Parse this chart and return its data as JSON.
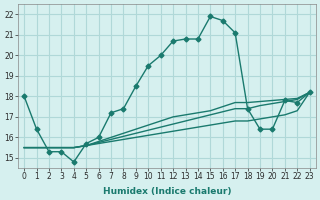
{
  "xlabel": "Humidex (Indice chaleur)",
  "ylabel": "",
  "bg_color": "#d6f0ef",
  "grid_color": "#b0d8d8",
  "line_color": "#1a7a6e",
  "xlim": [
    -0.5,
    23.5
  ],
  "ylim": [
    14.5,
    22.5
  ],
  "xticks": [
    0,
    1,
    2,
    3,
    4,
    5,
    6,
    7,
    8,
    9,
    10,
    11,
    12,
    13,
    14,
    15,
    16,
    17,
    18,
    19,
    20,
    21,
    22,
    23
  ],
  "yticks": [
    15,
    16,
    17,
    18,
    19,
    20,
    21,
    22
  ],
  "series": [
    {
      "x": [
        0,
        1,
        2,
        3,
        4,
        5,
        6,
        7,
        8,
        9,
        10,
        11,
        12,
        13,
        14,
        15,
        16,
        17,
        18,
        19,
        20,
        21,
        22,
        23
      ],
      "y": [
        18,
        16.4,
        15.3,
        15.3,
        14.8,
        15.7,
        16.0,
        17.2,
        17.4,
        18.5,
        19.5,
        20.0,
        20.7,
        20.8,
        20.8,
        21.9,
        21.7,
        21.1,
        17.4,
        16.4,
        16.4,
        17.8,
        17.7,
        18.2
      ],
      "style": "-",
      "marker": "D",
      "markersize": 2.5
    },
    {
      "x": [
        0,
        1,
        2,
        3,
        4,
        5,
        6,
        7,
        8,
        9,
        10,
        11,
        12,
        13,
        14,
        15,
        16,
        17,
        18,
        19,
        20,
        21,
        22,
        23
      ],
      "y": [
        15.5,
        15.5,
        15.5,
        15.5,
        15.5,
        15.6,
        15.7,
        15.8,
        15.9,
        16.0,
        16.1,
        16.2,
        16.3,
        16.4,
        16.5,
        16.6,
        16.7,
        16.8,
        16.8,
        16.9,
        17.0,
        17.1,
        17.3,
        18.2
      ],
      "style": "-",
      "marker": null,
      "markersize": 0
    },
    {
      "x": [
        0,
        1,
        2,
        3,
        4,
        5,
        6,
        7,
        8,
        9,
        10,
        11,
        12,
        13,
        14,
        15,
        16,
        17,
        18,
        19,
        20,
        21,
        22,
        23
      ],
      "y": [
        15.5,
        15.5,
        15.5,
        15.5,
        15.5,
        15.6,
        15.75,
        15.9,
        16.05,
        16.2,
        16.35,
        16.5,
        16.65,
        16.8,
        16.95,
        17.1,
        17.25,
        17.4,
        17.4,
        17.55,
        17.65,
        17.75,
        17.85,
        18.2
      ],
      "style": "-",
      "marker": null,
      "markersize": 0
    },
    {
      "x": [
        0,
        1,
        2,
        3,
        4,
        5,
        6,
        7,
        8,
        9,
        10,
        11,
        12,
        13,
        14,
        15,
        16,
        17,
        18,
        19,
        20,
        21,
        22,
        23
      ],
      "y": [
        15.5,
        15.5,
        15.5,
        15.5,
        15.5,
        15.6,
        15.8,
        16.0,
        16.2,
        16.4,
        16.6,
        16.8,
        17.0,
        17.1,
        17.2,
        17.3,
        17.5,
        17.7,
        17.7,
        17.75,
        17.8,
        17.85,
        17.9,
        18.2
      ],
      "style": "-",
      "marker": null,
      "markersize": 0
    }
  ]
}
